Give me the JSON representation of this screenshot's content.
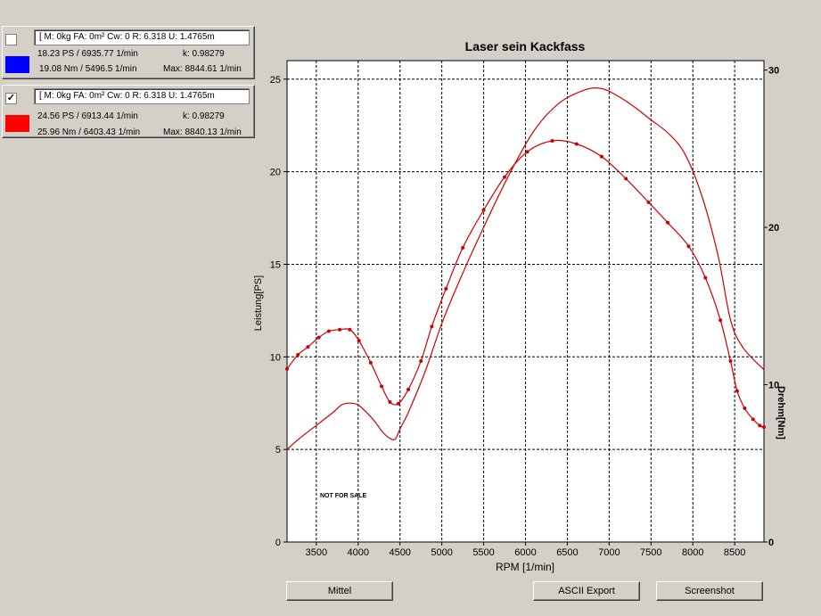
{
  "legend": [
    {
      "checked": false,
      "checkbox_mark": "",
      "color": "#0000ff",
      "params": "[ M: 0kg  FA: 0m²  Cw: 0  R: 6.318  U: 1.4765m",
      "power": "18.23 PS / 6935.77 1/min",
      "k": "k: 0.98279",
      "torque": "19.08 Nm / 5496.5 1/min",
      "max": "Max: 8844.61 1/min"
    },
    {
      "checked": true,
      "checkbox_mark": "✓",
      "color": "#ff0000",
      "params": "[ M: 0kg  FA: 0m²  Cw: 0  R: 6.318  U: 1.4765m",
      "power": "24.56 PS / 6913.44 1/min",
      "k": "k: 0.98279",
      "torque": "25.96 Nm / 6403.43 1/min",
      "max": "Max: 8840.13 1/min"
    }
  ],
  "chart": {
    "title": "Laser sein Kackfass",
    "xlabel": "RPM [1/min]",
    "ylabel_left": "Leistung[PS]",
    "ylabel_right": "Drehm[Nm]",
    "watermark": "NOT FOR SALE"
  },
  "buttons": {
    "mittel": "Mittel",
    "ascii_export": "ASCII Export",
    "screenshot": "Screenshot"
  },
  "chart_data": {
    "type": "line",
    "title": "Laser sein Kackfass",
    "xlabel": "RPM [1/min]",
    "ylabel": "Leistung[PS]",
    "y2label": "Drehm[Nm]",
    "xlim": [
      3150,
      8850
    ],
    "ylim": [
      0,
      26
    ],
    "y2lim": [
      0,
      30.6
    ],
    "grid": true,
    "x_ticks": [
      3500,
      4000,
      4500,
      5000,
      5500,
      6000,
      6500,
      7000,
      7500,
      8000,
      8500
    ],
    "y_ticks": [
      0,
      5,
      10,
      15,
      20,
      25
    ],
    "y2_ticks": [
      0,
      10,
      20,
      30
    ],
    "line_color": "#d00000",
    "series": [
      {
        "axis": "left",
        "markers": false,
        "x": [
          3150,
          3300,
          3500,
          3700,
          3800,
          3900,
          4000,
          4100,
          4200,
          4300,
          4400,
          4450,
          4500,
          4600,
          4800,
          5000,
          5200,
          5500,
          5800,
          6100,
          6400,
          6700,
          6900,
          7100,
          7300,
          7500,
          7700,
          7900,
          8100,
          8300,
          8450,
          8600,
          8850
        ],
        "y": [
          5.0,
          5.6,
          6.3,
          7.0,
          7.4,
          7.5,
          7.4,
          7.0,
          6.5,
          5.9,
          5.55,
          5.6,
          6.1,
          7.0,
          9.2,
          11.8,
          14.0,
          17.0,
          19.8,
          22.2,
          23.7,
          24.4,
          24.5,
          24.1,
          23.5,
          22.8,
          22.1,
          21.0,
          18.8,
          15.5,
          12.0,
          10.5,
          9.3
        ]
      },
      {
        "axis": "right",
        "markers": true,
        "x": [
          3150,
          3280,
          3400,
          3530,
          3650,
          3780,
          3900,
          4010,
          4150,
          4280,
          4380,
          4480,
          4600,
          4750,
          4880,
          5050,
          5250,
          5500,
          5750,
          6020,
          6320,
          6610,
          6910,
          7200,
          7470,
          7700,
          7950,
          8150,
          8330,
          8450,
          8530,
          8620,
          8720,
          8800,
          8850
        ],
        "y": [
          11.0,
          11.9,
          12.4,
          13.0,
          13.4,
          13.5,
          13.5,
          12.8,
          11.4,
          9.9,
          8.9,
          8.8,
          9.7,
          11.5,
          13.7,
          16.1,
          18.7,
          21.1,
          23.2,
          24.8,
          25.5,
          25.3,
          24.5,
          23.1,
          21.6,
          20.3,
          18.8,
          16.8,
          14.1,
          11.5,
          9.6,
          8.5,
          7.8,
          7.4,
          7.3
        ]
      }
    ]
  }
}
